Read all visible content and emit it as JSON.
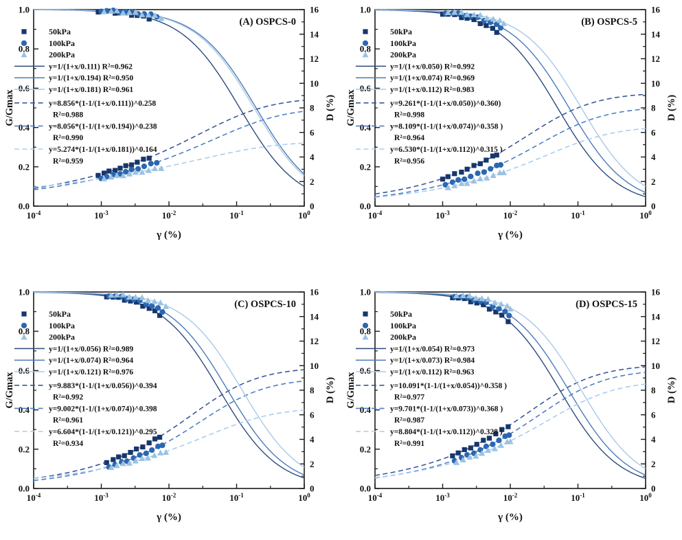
{
  "figure": {
    "background": "#ffffff"
  },
  "style": {
    "axis_color": "#1a1a1a",
    "text_color": "#111111",
    "series_colors": {
      "p50": {
        "marker": "#17376b",
        "solid": "#2c4a7c",
        "dashed": "#3a5896"
      },
      "p100": {
        "marker": "#2b67b1",
        "solid": "#4c7ab8",
        "dashed": "#4e7ec6"
      },
      "p200": {
        "marker": "#9cc2e2",
        "solid": "#a9c9e6",
        "dashed": "#a9cdee"
      }
    }
  },
  "chart_data": [
    {
      "type": "line",
      "title": "(A) OSPCS-0",
      "xlabel": "γ (%)",
      "ylabel_left": "G/Gmax",
      "ylabel_right": "D (%)",
      "x_scale": "log",
      "xlim_log": [
        -4,
        0
      ],
      "ylim_left": [
        0.0,
        1.0
      ],
      "ylim_right": [
        0,
        16
      ],
      "x_tick_mantissa": "10",
      "x_tick_exponents": [
        "-4",
        "-3",
        "-2",
        "-1",
        "0"
      ],
      "y_ticks_left": [
        "0.0",
        "0.2",
        "0.4",
        "0.6",
        "0.8",
        "1.0"
      ],
      "y_ticks_right": [
        "0",
        "2",
        "4",
        "6",
        "8",
        "10",
        "12",
        "14",
        "16"
      ],
      "series": [
        {
          "pressure": "50kPa",
          "marker": "square",
          "color_key": "p50",
          "modulus_fit": {
            "gamma_ref": 0.111,
            "r2": 0.962,
            "label": "y=1/(1+x/0.111) R²=0.962"
          },
          "damping_fit": {
            "A": 8.856,
            "n": 0.258,
            "gamma_ref": 0.111,
            "r2": 0.988,
            "label": "y=8.856*(1-1/(1+x/0.111))^0.258",
            "r2_label": "R²=0.988"
          },
          "points_x": [
            0.0009,
            0.0011,
            0.0013,
            0.0016,
            0.0019,
            0.0023,
            0.0028,
            0.0034,
            0.0042,
            0.0051
          ]
        },
        {
          "pressure": "100kPa",
          "marker": "circle",
          "color_key": "p100",
          "modulus_fit": {
            "gamma_ref": 0.194,
            "r2": 0.95,
            "label": "y=1/(1+x/0.194) R²=0.950"
          },
          "damping_fit": {
            "A": 8.056,
            "n": 0.238,
            "gamma_ref": 0.194,
            "r2": 0.99,
            "label": "y=8.056*(1-1/(1+x/0.194))^0.238",
            "r2_label": "R²=0.990"
          },
          "points_x": [
            0.001,
            0.0012,
            0.0015,
            0.0019,
            0.0023,
            0.0028,
            0.0035,
            0.0043,
            0.0054,
            0.0066
          ]
        },
        {
          "pressure": "200kPa",
          "marker": "triangle",
          "color_key": "p200",
          "modulus_fit": {
            "gamma_ref": 0.181,
            "r2": 0.961,
            "label": "y=1/(1+x/0.181) R²=0.961"
          },
          "damping_fit": {
            "A": 5.274,
            "n": 0.164,
            "gamma_ref": 0.181,
            "r2": 0.959,
            "label": "y=5.274*(1-1/(1+x/0.181))^0.164",
            "r2_label": "R²=0.959"
          },
          "points_x": [
            0.0011,
            0.0014,
            0.0017,
            0.0021,
            0.0026,
            0.0032,
            0.004,
            0.005,
            0.0062,
            0.0077
          ]
        }
      ]
    },
    {
      "type": "line",
      "title": "(B) OSPCS-5",
      "xlabel": "γ (%)",
      "ylabel_left": "G/Gmax",
      "ylabel_right": "D (%)",
      "x_scale": "log",
      "xlim_log": [
        -4,
        0
      ],
      "ylim_left": [
        0.0,
        1.0
      ],
      "ylim_right": [
        0,
        16
      ],
      "x_tick_mantissa": "10",
      "x_tick_exponents": [
        "-4",
        "-3",
        "-2",
        "-1",
        "0"
      ],
      "y_ticks_left": [
        "0.0",
        "0.2",
        "0.4",
        "0.6",
        "0.8",
        "1.0"
      ],
      "y_ticks_right": [
        "0",
        "2",
        "4",
        "6",
        "8",
        "10",
        "12",
        "14",
        "16"
      ],
      "series": [
        {
          "pressure": "50kPa",
          "marker": "square",
          "color_key": "p50",
          "modulus_fit": {
            "gamma_ref": 0.05,
            "r2": 0.992,
            "label": "y=1/(1+x/0.050) R²=0.992"
          },
          "damping_fit": {
            "A": 9.261,
            "n": 0.36,
            "gamma_ref": 0.05,
            "r2": 0.998,
            "label": "y=9.261*(1-1/(1+x/0.050))^0.360)",
            "r2_label": "R²=0.998"
          },
          "points_x": [
            0.001,
            0.0012,
            0.0015,
            0.0019,
            0.0023,
            0.0029,
            0.0036,
            0.0044,
            0.0055,
            0.0063
          ]
        },
        {
          "pressure": "100kPa",
          "marker": "circle",
          "color_key": "p100",
          "modulus_fit": {
            "gamma_ref": 0.074,
            "r2": 0.969,
            "label": "y=1/(1+x/0.074) R²=0.969"
          },
          "damping_fit": {
            "A": 8.109,
            "n": 0.358,
            "gamma_ref": 0.074,
            "r2": 0.964,
            "label": "y=8.109*(1-1/(1+x/0.074))^0.358 )",
            "r2_label": "R²=0.964"
          },
          "points_x": [
            0.0011,
            0.0014,
            0.0017,
            0.0021,
            0.0026,
            0.0033,
            0.0041,
            0.0051,
            0.0063,
            0.0072
          ]
        },
        {
          "pressure": "200kPa",
          "marker": "triangle",
          "color_key": "p200",
          "modulus_fit": {
            "gamma_ref": 0.112,
            "r2": 0.983,
            "label": "y=1/(1+x/0.112) R²=0.983"
          },
          "damping_fit": {
            "A": 6.53,
            "n": 0.315,
            "gamma_ref": 0.112,
            "r2": 0.956,
            "label": "y=6.530*(1-1/(1+x/0.112))^0.315 )",
            "r2_label": "R²=0.956"
          },
          "points_x": [
            0.0012,
            0.0015,
            0.0019,
            0.0023,
            0.0029,
            0.0036,
            0.0045,
            0.0056,
            0.007,
            0.008
          ]
        }
      ]
    },
    {
      "type": "line",
      "title": "(C) OSPCS-10",
      "xlabel": "γ (%)",
      "ylabel_left": "G/Gmax",
      "ylabel_right": "D (%)",
      "x_scale": "log",
      "xlim_log": [
        -4,
        0
      ],
      "ylim_left": [
        0.0,
        1.0
      ],
      "ylim_right": [
        0,
        16
      ],
      "x_tick_mantissa": "10",
      "x_tick_exponents": [
        "-4",
        "-3",
        "-2",
        "-1",
        "0"
      ],
      "y_ticks_left": [
        "0.0",
        "0.2",
        "0.4",
        "0.6",
        "0.8",
        "1.0"
      ],
      "y_ticks_right": [
        "0",
        "2",
        "4",
        "6",
        "8",
        "10",
        "12",
        "14",
        "16"
      ],
      "series": [
        {
          "pressure": "50kPa",
          "marker": "square",
          "color_key": "p50",
          "modulus_fit": {
            "gamma_ref": 0.056,
            "r2": 0.989,
            "label": "y=1/(1+x/0.056) R²=0.989"
          },
          "damping_fit": {
            "A": 9.883,
            "n": 0.394,
            "gamma_ref": 0.056,
            "r2": 0.992,
            "label": "y=9.883*(1-1/(1+x/0.056))^0.394",
            "r2_label": "R²=0.992"
          },
          "points_x": [
            0.0012,
            0.0015,
            0.0018,
            0.0022,
            0.0027,
            0.0033,
            0.0041,
            0.0051,
            0.0062,
            0.0073
          ]
        },
        {
          "pressure": "100kPa",
          "marker": "circle",
          "color_key": "p100",
          "modulus_fit": {
            "gamma_ref": 0.074,
            "r2": 0.964,
            "label": "y=1/(1+x/0.074) R²=0.964"
          },
          "damping_fit": {
            "A": 9.002,
            "n": 0.398,
            "gamma_ref": 0.074,
            "r2": 0.961,
            "label": "y=9.002*(1-1/(1+x/0.074))^0.398",
            "r2_label": "R²=0.961"
          },
          "points_x": [
            0.0013,
            0.0016,
            0.002,
            0.0024,
            0.003,
            0.0037,
            0.0046,
            0.0056,
            0.0069,
            0.008
          ]
        },
        {
          "pressure": "200kPa",
          "marker": "triangle",
          "color_key": "p200",
          "modulus_fit": {
            "gamma_ref": 0.121,
            "r2": 0.976,
            "label": "y=1/(1+x/0.121) R²=0.976"
          },
          "damping_fit": {
            "A": 6.604,
            "n": 0.295,
            "gamma_ref": 0.121,
            "r2": 0.934,
            "label": "y=6.604*(1-1/(1+x/0.121))^0.295",
            "r2_label": "R²=0.934"
          },
          "points_x": [
            0.0014,
            0.0017,
            0.0021,
            0.0026,
            0.0032,
            0.004,
            0.0049,
            0.0061,
            0.0075,
            0.009
          ]
        }
      ]
    },
    {
      "type": "line",
      "title": "(D) OSPCS-15",
      "xlabel": "γ (%)",
      "ylabel_left": "G/Gmax",
      "ylabel_right": "D (%)",
      "x_scale": "log",
      "xlim_log": [
        -4,
        0
      ],
      "ylim_left": [
        0.0,
        1.0
      ],
      "ylim_right": [
        0,
        16
      ],
      "x_tick_mantissa": "10",
      "x_tick_exponents": [
        "-4",
        "-3",
        "-2",
        "-1",
        "0"
      ],
      "y_ticks_left": [
        "0.0",
        "0.2",
        "0.4",
        "0.6",
        "0.8",
        "1.0"
      ],
      "y_ticks_right": [
        "0",
        "2",
        "4",
        "6",
        "8",
        "10",
        "12",
        "14",
        "16"
      ],
      "series": [
        {
          "pressure": "50kPa",
          "marker": "square",
          "color_key": "p50",
          "modulus_fit": {
            "gamma_ref": 0.054,
            "r2": 0.973,
            "label": "y=1/(1+x/0.054) R²=0.973"
          },
          "damping_fit": {
            "A": 10.091,
            "n": 0.358,
            "gamma_ref": 0.054,
            "r2": 0.977,
            "label": "y=10.091*(1-1/(1+x/0.054))^0.358 )",
            "r2_label": "R²=0.977"
          },
          "points_x": [
            0.0014,
            0.0017,
            0.0021,
            0.0026,
            0.0032,
            0.004,
            0.0049,
            0.0061,
            0.0075,
            0.0093
          ]
        },
        {
          "pressure": "100kPa",
          "marker": "circle",
          "color_key": "p100",
          "modulus_fit": {
            "gamma_ref": 0.073,
            "r2": 0.984,
            "label": "y=1/(1+x/0.073) R²=0.984"
          },
          "damping_fit": {
            "A": 9.701,
            "n": 0.368,
            "gamma_ref": 0.073,
            "r2": 0.987,
            "label": "y=9.701*(1-1/(1+x/0.073))^0.368 )",
            "r2_label": "R²=0.987"
          },
          "points_x": [
            0.0015,
            0.0019,
            0.0023,
            0.0029,
            0.0036,
            0.0044,
            0.0055,
            0.0068,
            0.0084,
            0.0096
          ]
        },
        {
          "pressure": "200kPa",
          "marker": "triangle",
          "color_key": "p200",
          "modulus_fit": {
            "gamma_ref": 0.112,
            "r2": 0.963,
            "label": "y=1/(1+x/0.112) R²=0.963"
          },
          "damping_fit": {
            "A": 8.804,
            "n": 0.328,
            "gamma_ref": 0.112,
            "r2": 0.991,
            "label": "y=8.804*(1-1/(1+x/0.112))^0.328 )",
            "r2_label": "R²=0.991"
          },
          "points_x": [
            0.0016,
            0.002,
            0.0025,
            0.0031,
            0.0038,
            0.0047,
            0.0059,
            0.0073,
            0.009,
            0.01
          ]
        }
      ]
    }
  ]
}
